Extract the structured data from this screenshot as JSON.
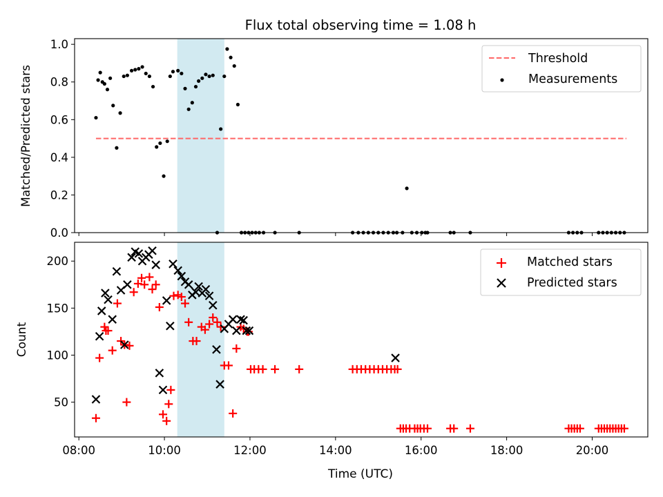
{
  "chart_data": [
    {
      "type": "scatter",
      "title": "Flux total observing time = 1.08 h",
      "xlabel": "",
      "ylabel": "Matched/Predicted stars",
      "xlim": [
        "07:54",
        "21:18"
      ],
      "ylim": [
        0,
        1.03
      ],
      "yticks": [
        "0.0",
        "0.2",
        "0.4",
        "0.6",
        "0.8",
        "1.0"
      ],
      "shaded_interval": [
        "10:18",
        "11:24"
      ],
      "shade_color": "#add8e6",
      "legend": {
        "placement": "top-right",
        "entries": [
          "Threshold",
          "Measurements"
        ]
      },
      "threshold": {
        "name": "Threshold",
        "value": 0.5,
        "x": [
          "08:24",
          "20:48"
        ],
        "color": "#ff6666",
        "style": "dashed"
      },
      "series": [
        {
          "name": "Measurements",
          "color": "#000000",
          "marker": "dot",
          "x": [
            "08:24",
            "08:27",
            "08:30",
            "08:33",
            "08:36",
            "08:40",
            "08:44",
            "08:48",
            "08:53",
            "08:58",
            "09:03",
            "09:08",
            "09:14",
            "09:19",
            "09:24",
            "09:29",
            "09:34",
            "09:39",
            "09:44",
            "09:49",
            "09:54",
            "09:59",
            "10:04",
            "10:08",
            "10:12",
            "10:19",
            "10:24",
            "10:29",
            "10:34",
            "10:39",
            "10:44",
            "10:48",
            "10:53",
            "10:58",
            "11:03",
            "11:08",
            "11:14",
            "11:19",
            "11:24",
            "11:28",
            "11:33",
            "11:38",
            "11:43",
            "11:48",
            "11:53",
            "11:58",
            "12:03",
            "12:08",
            "12:13",
            "12:19",
            "12:35",
            "13:09",
            "14:24",
            "14:32",
            "14:39",
            "14:46",
            "14:53",
            "15:00",
            "15:07",
            "15:14",
            "15:21",
            "15:26",
            "15:34",
            "15:40",
            "15:47",
            "15:54",
            "16:01",
            "16:06",
            "16:09",
            "16:41",
            "16:46",
            "17:09",
            "19:27",
            "19:33",
            "19:39",
            "19:45",
            "20:09",
            "20:15",
            "20:21",
            "20:27",
            "20:33",
            "20:39",
            "20:45"
          ],
          "y": [
            0.61,
            0.81,
            0.85,
            0.8,
            0.79,
            0.76,
            0.82,
            0.675,
            0.45,
            0.635,
            0.83,
            0.835,
            0.86,
            0.865,
            0.87,
            0.88,
            0.845,
            0.83,
            0.775,
            0.455,
            0.475,
            0.3,
            0.485,
            0.83,
            0.855,
            0.86,
            0.845,
            0.765,
            0.655,
            0.69,
            0.775,
            0.805,
            0.82,
            0.84,
            0.83,
            0.835,
            0.0,
            0.55,
            0.83,
            0.975,
            0.93,
            0.885,
            0.68,
            0.0,
            0.0,
            0.0,
            0.0,
            0.0,
            0.0,
            0.0,
            0.0,
            0.0,
            0.0,
            0.0,
            0.0,
            0.0,
            0.0,
            0.0,
            0.0,
            0.0,
            0.0,
            0.0,
            0.0,
            0.235,
            0.0,
            0.0,
            0.0,
            0.0,
            0.0,
            0.0,
            0.0,
            0.0,
            0.0,
            0.0,
            0.0,
            0.0,
            0.0,
            0.0,
            0.0,
            0.0,
            0.0,
            0.0,
            0.0
          ]
        }
      ]
    },
    {
      "type": "scatter",
      "title": "",
      "xlabel": "Time (UTC)",
      "ylabel": "Count",
      "xlim": [
        "07:54",
        "21:18"
      ],
      "ylim": [
        13,
        220
      ],
      "xticks": [
        "08:00",
        "10:00",
        "12:00",
        "14:00",
        "16:00",
        "18:00",
        "20:00"
      ],
      "yticks": [
        "50",
        "100",
        "150",
        "200"
      ],
      "shaded_interval": [
        "10:18",
        "11:24"
      ],
      "shade_color": "#add8e6",
      "legend": {
        "placement": "top-right",
        "entries": [
          "Matched stars",
          "Predicted stars"
        ]
      },
      "series": [
        {
          "name": "Matched stars",
          "color": "#ff0000",
          "marker": "plus",
          "x": [
            "08:24",
            "08:29",
            "08:36",
            "08:38",
            "08:41",
            "08:47",
            "08:54",
            "08:59",
            "09:04",
            "09:07",
            "09:11",
            "09:17",
            "09:23",
            "09:28",
            "09:32",
            "09:39",
            "09:43",
            "09:48",
            "09:53",
            "09:58",
            "10:03",
            "10:06",
            "10:09",
            "10:13",
            "10:19",
            "10:24",
            "10:29",
            "10:34",
            "10:40",
            "10:45",
            "10:52",
            "10:57",
            "11:03",
            "11:08",
            "11:14",
            "11:19",
            "11:24",
            "11:30",
            "11:36",
            "11:41",
            "11:47",
            "11:51",
            "11:56",
            "11:58",
            "12:01",
            "12:06",
            "12:12",
            "12:18",
            "12:35",
            "13:09",
            "14:24",
            "14:30",
            "14:36",
            "14:42",
            "14:48",
            "14:54",
            "15:00",
            "15:06",
            "15:12",
            "15:18",
            "15:23",
            "15:27",
            "15:31",
            "15:35",
            "15:39",
            "15:44",
            "15:51",
            "15:55",
            "15:59",
            "16:04",
            "16:09",
            "16:41",
            "16:46",
            "17:09",
            "19:27",
            "19:31",
            "19:35",
            "19:39",
            "19:43",
            "20:09",
            "20:13",
            "20:17",
            "20:21",
            "20:25",
            "20:29",
            "20:33",
            "20:37",
            "20:41",
            "20:45"
          ],
          "y": [
            33,
            97,
            130,
            126,
            126,
            105,
            155,
            115,
            111,
            50,
            110,
            167,
            176,
            182,
            175,
            183,
            170,
            175,
            151,
            37,
            30,
            48,
            63,
            163,
            164,
            162,
            155,
            135,
            115,
            115,
            130,
            127,
            133,
            140,
            135,
            130,
            89,
            89,
            38,
            107,
            130,
            128,
            125,
            125,
            85,
            85,
            85,
            85,
            85,
            85,
            85,
            85,
            85,
            85,
            85,
            85,
            85,
            85,
            85,
            85,
            85,
            85,
            22,
            22,
            22,
            22,
            22,
            22,
            22,
            22,
            22,
            22,
            22,
            22,
            22,
            22,
            22,
            22,
            22,
            22,
            22,
            22,
            22,
            22,
            22,
            22,
            22,
            22,
            22
          ]
        },
        {
          "name": "Predicted stars",
          "color": "#000000",
          "marker": "x",
          "x": [
            "08:24",
            "08:29",
            "08:32",
            "08:37",
            "08:41",
            "08:47",
            "08:53",
            "08:59",
            "09:04",
            "09:08",
            "09:14",
            "09:19",
            "09:24",
            "09:29",
            "09:34",
            "09:38",
            "09:43",
            "09:48",
            "09:53",
            "09:58",
            "10:03",
            "10:08",
            "10:12",
            "10:19",
            "10:24",
            "10:29",
            "10:34",
            "10:39",
            "10:44",
            "10:48",
            "10:53",
            "10:58",
            "11:03",
            "11:08",
            "11:13",
            "11:18",
            "11:24",
            "11:30",
            "11:36",
            "11:41",
            "11:47",
            "11:51",
            "11:55",
            "11:59",
            "15:24"
          ],
          "y": [
            53,
            120,
            147,
            166,
            159,
            138,
            189,
            169,
            111,
            175,
            204,
            210,
            208,
            200,
            204,
            207,
            211,
            196,
            81,
            63,
            158,
            131,
            197,
            190,
            184,
            178,
            175,
            164,
            167,
            173,
            166,
            170,
            163,
            153,
            106,
            69,
            128,
            133,
            138,
            126,
            138,
            137,
            126,
            126,
            97
          ]
        }
      ]
    }
  ]
}
